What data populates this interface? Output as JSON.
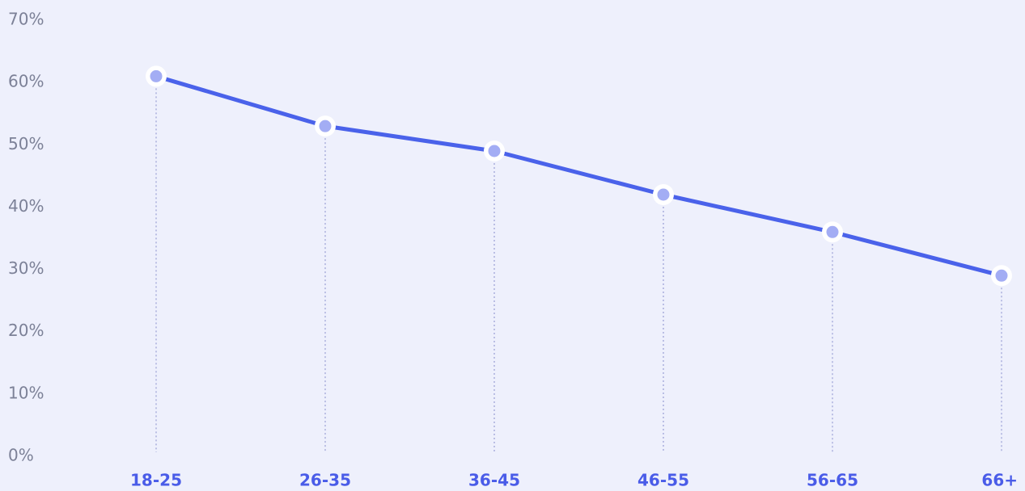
{
  "chart_data": {
    "type": "line",
    "categories": [
      "18-25",
      "26-35",
      "36-45",
      "46-55",
      "56-65",
      "66+"
    ],
    "series": [
      {
        "color": "#4a62ea",
        "values": [
          61,
          53,
          49,
          42,
          36,
          29
        ]
      }
    ],
    "ylim": [
      0,
      70
    ],
    "yticks": [
      {
        "value": 0,
        "label": "0%"
      },
      {
        "value": 10,
        "label": "10%"
      },
      {
        "value": 20,
        "label": "20%"
      },
      {
        "value": 30,
        "label": "30%"
      },
      {
        "value": 40,
        "label": "40%"
      },
      {
        "value": 50,
        "label": "50%"
      },
      {
        "value": 60,
        "label": "60%"
      },
      {
        "value": 70,
        "label": "70%"
      }
    ]
  }
}
